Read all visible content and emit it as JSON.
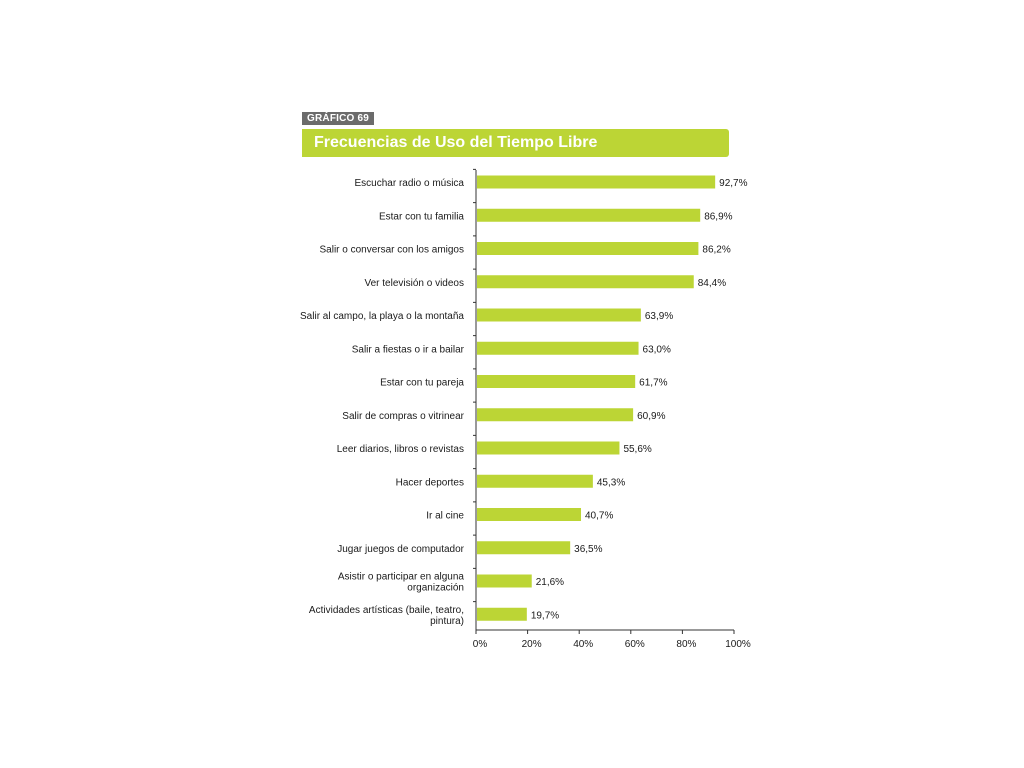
{
  "header": {
    "badge": "GRÁFICO 69",
    "title": "Frecuencias de Uso del Tiempo Libre"
  },
  "colors": {
    "bar": "#bcd535",
    "title_bar": "#bcd535",
    "badge": "#6b6b6b",
    "axis": "#333333"
  },
  "chart_data": {
    "type": "bar",
    "orientation": "horizontal",
    "title": "Frecuencias de Uso del Tiempo Libre",
    "categories": [
      "Escuchar radio o música",
      "Estar con tu familia",
      "Salir o conversar con los amigos",
      "Ver televisión o videos",
      "Salir al campo, la playa o la montaña",
      "Salir a fiestas o ir a bailar",
      "Estar con tu pareja",
      "Salir de compras o vitrinear",
      "Leer diarios, libros o revistas",
      "Hacer deportes",
      "Ir al cine",
      "Jugar juegos de computador",
      "Asistir o participar en alguna organización",
      "Actividades artísticas (baile, teatro, pintura)"
    ],
    "category_lines": [
      [
        "Escuchar radio o música"
      ],
      [
        "Estar con tu familia"
      ],
      [
        "Salir o conversar con los amigos"
      ],
      [
        "Ver televisión o videos"
      ],
      [
        "Salir al campo, la playa o la montaña"
      ],
      [
        "Salir a fiestas o ir a bailar"
      ],
      [
        "Estar con tu pareja"
      ],
      [
        "Salir de compras o vitrinear"
      ],
      [
        "Leer diarios, libros o revistas"
      ],
      [
        "Hacer deportes"
      ],
      [
        "Ir al cine"
      ],
      [
        "Jugar juegos de computador"
      ],
      [
        "Asistir o participar en alguna",
        "organización"
      ],
      [
        "Actividades artísticas (baile, teatro,",
        "pintura)"
      ]
    ],
    "values": [
      92.7,
      86.9,
      86.2,
      84.4,
      63.9,
      63.0,
      61.7,
      60.9,
      55.6,
      45.3,
      40.7,
      36.5,
      21.6,
      19.7
    ],
    "value_labels": [
      "92,7%",
      "86,9%",
      "86,2%",
      "84,4%",
      "63,9%",
      "63,0%",
      "61,7%",
      "60,9%",
      "55,6%",
      "45,3%",
      "40,7%",
      "36,5%",
      "21,6%",
      "19,7%"
    ],
    "xlim": [
      0,
      100
    ],
    "x_ticks": [
      0,
      20,
      40,
      60,
      80,
      100
    ],
    "x_tick_labels": [
      "0%",
      "20%",
      "40%",
      "60%",
      "80%",
      "100%"
    ],
    "xlabel": "",
    "ylabel": "",
    "grid": false,
    "legend": "none"
  }
}
